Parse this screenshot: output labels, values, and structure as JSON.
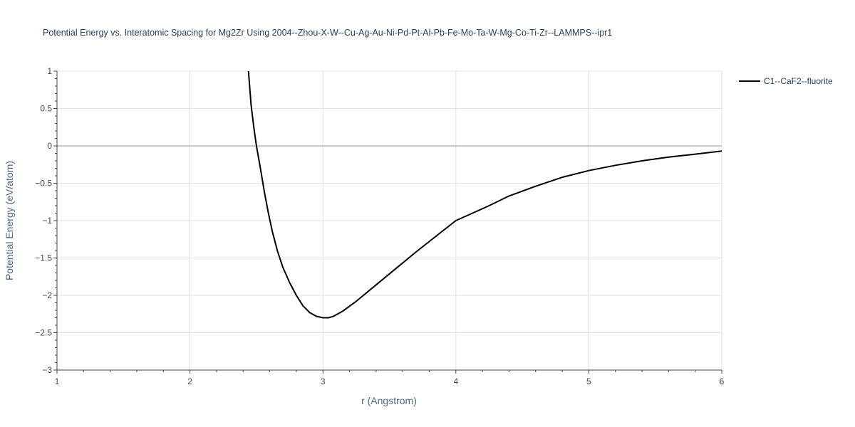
{
  "chart_data": {
    "type": "line",
    "title": "Potential Energy vs. Interatomic Spacing for Mg2Zr Using 2004--Zhou-X-W--Cu-Ag-Au-Ni-Pd-Pt-Al-Pb-Fe-Mo-Ta-W-Mg-Co-Ti-Zr--LAMMPS--ipr1",
    "xlabel": "r (Angstrom)",
    "ylabel": "Potential Energy (eV/atom)",
    "xlim": [
      1,
      6
    ],
    "ylim": [
      -3,
      1
    ],
    "x_ticks": [
      1,
      2,
      3,
      4,
      5,
      6
    ],
    "x_tick_labels": [
      "1",
      "2",
      "3",
      "4",
      "5",
      "6"
    ],
    "y_ticks": [
      1,
      0.5,
      0,
      -0.5,
      -1,
      -1.5,
      -2,
      -2.5,
      -3
    ],
    "y_tick_labels": [
      "1",
      "0.5",
      "0",
      "−0.5",
      "−1",
      "−1.5",
      "−2",
      "−2.5",
      "−3"
    ],
    "grid": true,
    "legend_position": "top-right",
    "series": [
      {
        "name": "C1--CaF2--fluorite",
        "color": "#000000",
        "x": [
          2.44,
          2.46,
          2.48,
          2.5,
          2.53,
          2.56,
          2.59,
          2.62,
          2.66,
          2.7,
          2.75,
          2.8,
          2.85,
          2.9,
          2.95,
          3.0,
          3.04,
          3.08,
          3.15,
          3.25,
          3.4,
          3.55,
          3.7,
          3.85,
          4.0,
          4.1,
          4.25,
          4.4,
          4.6,
          4.8,
          5.0,
          5.2,
          5.4,
          5.6,
          5.8,
          6.0
        ],
        "y": [
          1.0,
          0.55,
          0.25,
          0.0,
          -0.3,
          -0.62,
          -0.9,
          -1.15,
          -1.42,
          -1.63,
          -1.83,
          -2.0,
          -2.14,
          -2.23,
          -2.28,
          -2.3,
          -2.3,
          -2.28,
          -2.21,
          -2.08,
          -1.86,
          -1.64,
          -1.42,
          -1.21,
          -1.0,
          -0.92,
          -0.8,
          -0.67,
          -0.54,
          -0.42,
          -0.33,
          -0.26,
          -0.2,
          -0.15,
          -0.11,
          -0.07
        ]
      }
    ]
  }
}
